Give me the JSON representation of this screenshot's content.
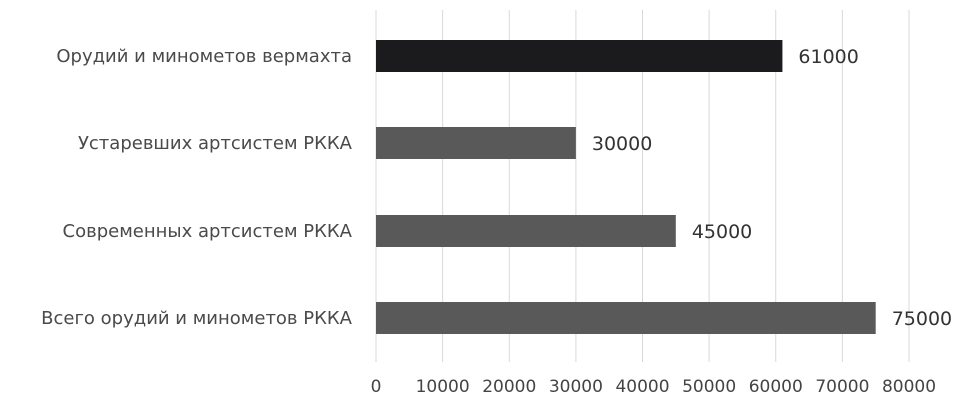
{
  "chart_data": {
    "type": "bar",
    "orientation": "horizontal",
    "title": "",
    "xlabel": "",
    "ylabel": "",
    "categories": [
      "Орудий и минометов вермахта",
      "Устаревших артсистем РККА",
      "Современных артсистем РККА",
      "Всего орудий и минометов РККА"
    ],
    "values": [
      61000,
      30000,
      45000,
      75000
    ],
    "data_labels": [
      "61000",
      "30000",
      "45000",
      "75000"
    ],
    "colors": [
      "#1b1b1d",
      "#595959",
      "#595959",
      "#595959"
    ],
    "xlim": [
      0,
      80000
    ],
    "ticks": [
      0,
      10000,
      20000,
      30000,
      40000,
      50000,
      60000,
      70000,
      80000
    ],
    "tick_labels": [
      "0",
      "10000",
      "20000",
      "30000",
      "40000",
      "50000",
      "60000",
      "70000",
      "80000"
    ],
    "grid": true,
    "legend": "none"
  }
}
